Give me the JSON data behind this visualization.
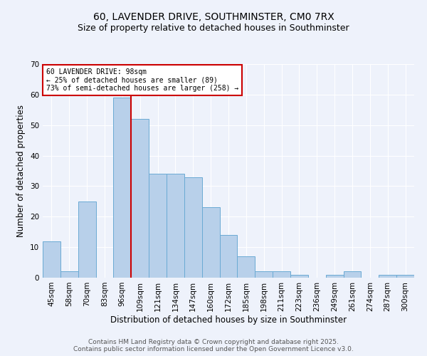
{
  "title1": "60, LAVENDER DRIVE, SOUTHMINSTER, CM0 7RX",
  "title2": "Size of property relative to detached houses in Southminster",
  "xlabel": "Distribution of detached houses by size in Southminster",
  "ylabel": "Number of detached properties",
  "categories": [
    "45sqm",
    "58sqm",
    "70sqm",
    "83sqm",
    "96sqm",
    "109sqm",
    "121sqm",
    "134sqm",
    "147sqm",
    "160sqm",
    "172sqm",
    "185sqm",
    "198sqm",
    "211sqm",
    "223sqm",
    "236sqm",
    "249sqm",
    "261sqm",
    "274sqm",
    "287sqm",
    "300sqm"
  ],
  "values": [
    12,
    2,
    25,
    0,
    59,
    52,
    34,
    34,
    33,
    23,
    14,
    7,
    2,
    2,
    1,
    0,
    1,
    2,
    0,
    1,
    1
  ],
  "bar_color": "#b8d0ea",
  "bar_edge_color": "#6aaad4",
  "bar_width": 1.0,
  "property_bin_index": 4,
  "vline_x_offset": 0.5,
  "vline_color": "#cc0000",
  "annotation_text": "60 LAVENDER DRIVE: 98sqm\n← 25% of detached houses are smaller (89)\n73% of semi-detached houses are larger (258) →",
  "annotation_box_color": "#ffffff",
  "annotation_box_edge": "#cc0000",
  "ylim": [
    0,
    70
  ],
  "yticks": [
    0,
    10,
    20,
    30,
    40,
    50,
    60,
    70
  ],
  "footer1": "Contains HM Land Registry data © Crown copyright and database right 2025.",
  "footer2": "Contains public sector information licensed under the Open Government Licence v3.0.",
  "background_color": "#eef2fb",
  "grid_color": "#ffffff",
  "title_fontsize": 10,
  "subtitle_fontsize": 9,
  "tick_fontsize": 7.5,
  "label_fontsize": 8.5,
  "footer_fontsize": 6.5,
  "ann_fontsize": 7
}
